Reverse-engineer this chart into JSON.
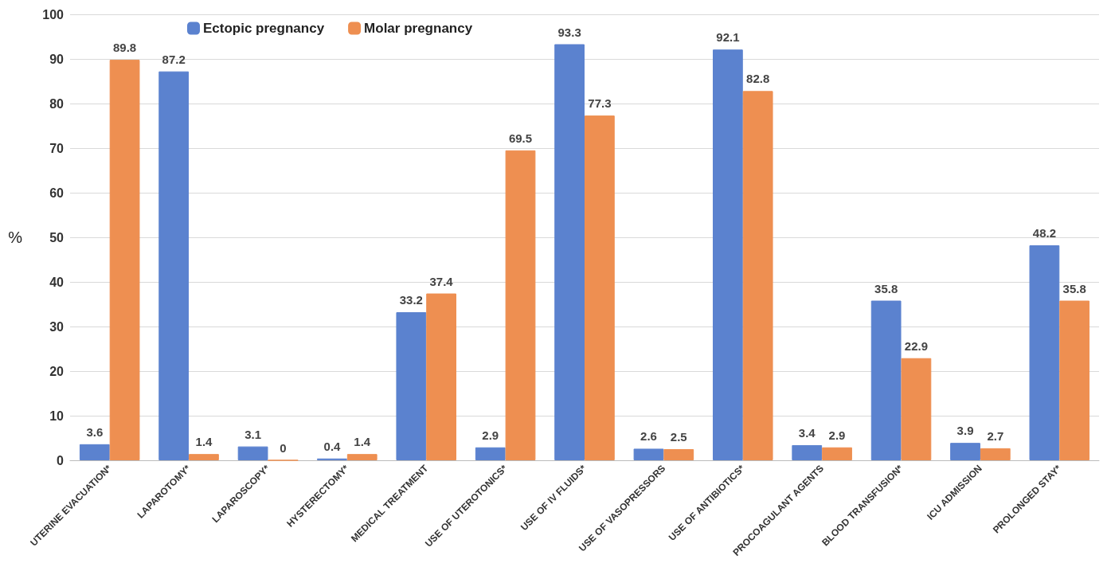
{
  "chart_data": {
    "type": "bar",
    "ylabel": "%",
    "categories": [
      "UTERINE EVACUATION*",
      "LAPAROTOMY*",
      "LAPAROSCOPY*",
      "HYSTERECTOMY*",
      "MEDICAL TREATMENT",
      "USE OF UTEROTONICS*",
      "USE OF IV FLUIDS*",
      "USE OF VASOPRESSORS",
      "USE OF ANTIBIOTICS*",
      "PROCOAGULANT AGENTS",
      "BLOOD TRANSFUSION*",
      "ICU ADMISSION",
      "PROLONGED STAY*"
    ],
    "series": [
      {
        "name": "Ectopic pregnancy",
        "color": "#5b82cf",
        "values": [
          3.6,
          87.2,
          3.1,
          0.4,
          33.2,
          2.9,
          93.3,
          2.6,
          92.1,
          3.4,
          35.8,
          3.9,
          48.2
        ]
      },
      {
        "name": "Molar pregnancy",
        "color": "#ee8f51",
        "values": [
          89.8,
          1.4,
          0,
          1.4,
          37.4,
          69.5,
          77.3,
          2.5,
          82.8,
          2.9,
          22.9,
          2.7,
          35.8
        ]
      }
    ],
    "ylim": [
      0,
      100
    ],
    "yticks": [
      0,
      10,
      20,
      30,
      40,
      50,
      60,
      70,
      80,
      90,
      100
    ],
    "grid": "y",
    "legend": "top left",
    "data_labels": true
  }
}
